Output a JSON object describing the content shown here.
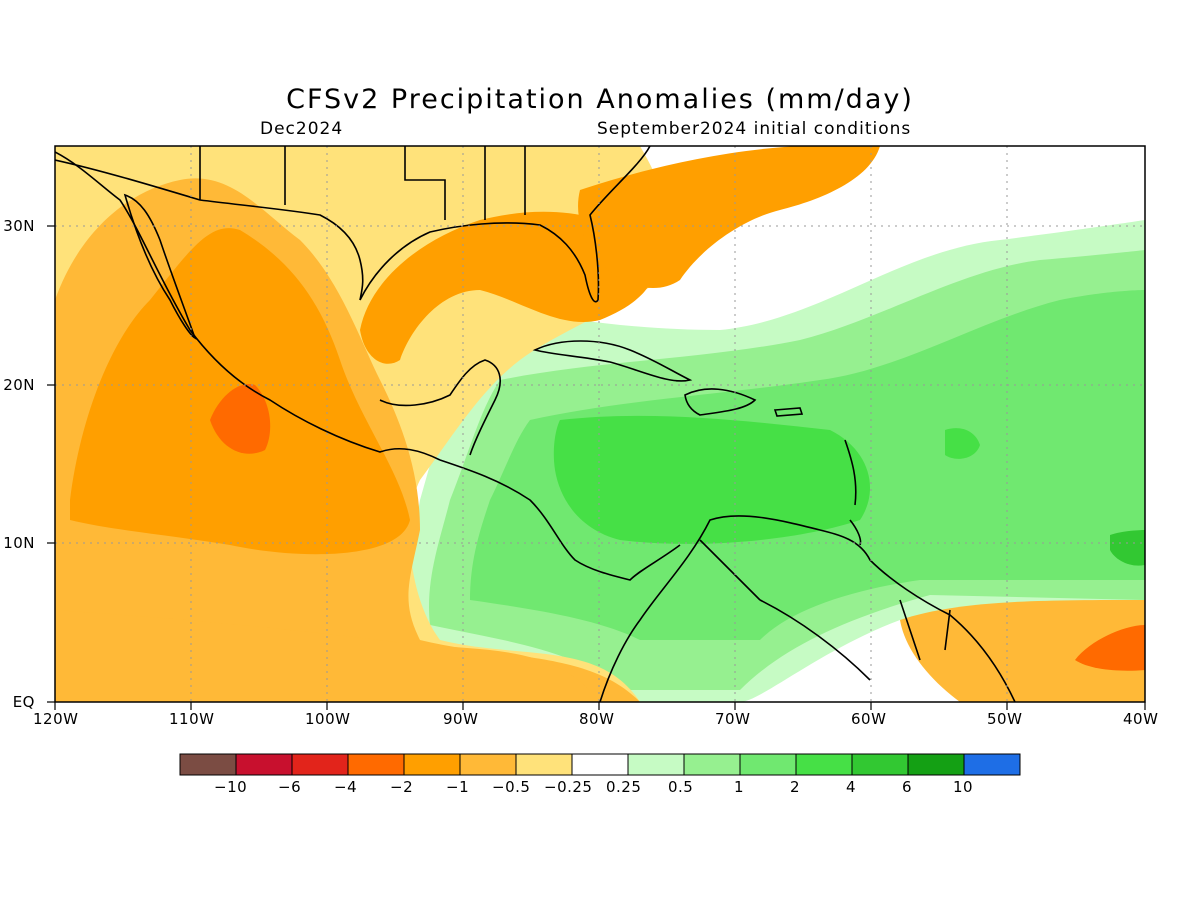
{
  "title": "CFSv2 Precipitation Anomalies (mm/day)",
  "valid_label": "Dec2024",
  "init_label": "September2024 initial conditions",
  "axes": {
    "x_ticks": [
      "120W",
      "110W",
      "100W",
      "90W",
      "80W",
      "70W",
      "60W",
      "50W",
      "40W"
    ],
    "y_ticks": [
      "EQ",
      "10N",
      "20N",
      "30N"
    ],
    "x_range_deg": [
      -120,
      -40
    ],
    "y_range_deg": [
      0,
      35
    ]
  },
  "colorbar": {
    "labels": [
      "-10",
      "-6",
      "-4",
      "-2",
      "-1",
      "-0.5",
      "-0.25",
      "0.25",
      "0.5",
      "1",
      "2",
      "4",
      "6",
      "10"
    ],
    "colors": [
      "#7b4c43",
      "#c8102e",
      "#e2241b",
      "#ff6a00",
      "#ff9f00",
      "#ffb937",
      "#ffe27a",
      "#ffffff",
      "#c6fbc4",
      "#96f090",
      "#70e870",
      "#46e046",
      "#32c832",
      "#14a014",
      "#1e6ee6"
    ]
  },
  "map": {
    "land_outline_color": "#000000",
    "grid_style": "dotted",
    "regions": {
      "dry_orange": "#ff9f00",
      "dry_light": "#ffb937",
      "dry_pale": "#ffe27a",
      "dry_strong": "#ff6a00",
      "wet_pale": "#c6fbc4",
      "wet_light": "#96f090",
      "wet_mid": "#70e870",
      "wet_strong": "#46e046",
      "wet_dark": "#32c832"
    }
  }
}
